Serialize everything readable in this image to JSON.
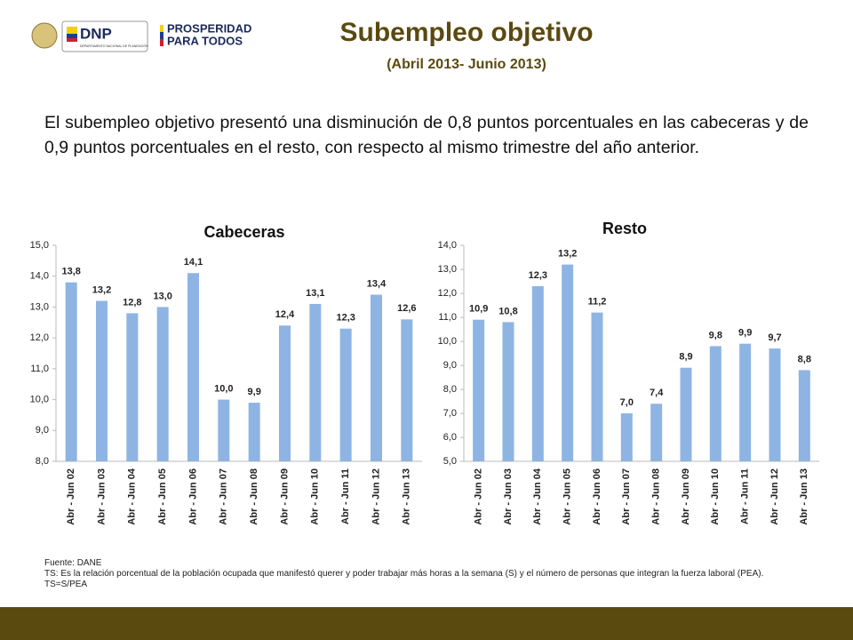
{
  "logos": {
    "dnp": "DNP",
    "dnp_sub": "DEPARTAMENTO NACIONAL DE PLANEACIÓN",
    "prosperidad": "PROSPERIDAD",
    "para_todos": "PARA TODOS"
  },
  "header": {
    "title": "Subempleo objetivo",
    "subtitle": "(Abril 2013- Junio 2013)"
  },
  "body": "El subempleo objetivo presentó una disminución de 0,8 puntos porcentuales en las cabeceras y de 0,9 puntos porcentuales en el resto, con respecto al mismo trimestre del año anterior.",
  "chart_data": [
    {
      "type": "bar",
      "title": "Cabeceras",
      "color": "#8eb4e3",
      "grid": false,
      "categories": [
        "Abr - Jun 02",
        "Abr - Jun 03",
        "Abr - Jun 04",
        "Abr - Jun 05",
        "Abr - Jun 06",
        "Abr - Jun 07",
        "Abr - Jun 08",
        "Abr - Jun 09",
        "Abr - Jun 10",
        "Abr - Jun 11",
        "Abr - Jun 12",
        "Abr - Jun 13"
      ],
      "values": [
        13.8,
        13.2,
        12.8,
        13.0,
        14.1,
        10.0,
        9.9,
        12.4,
        13.1,
        12.3,
        13.4,
        12.6
      ],
      "value_labels": [
        "13,8",
        "13,2",
        "12,8",
        "13,0",
        "14,1",
        "10,0",
        "9,9",
        "12,4",
        "13,1",
        "12,3",
        "13,4",
        "12,6"
      ],
      "ylim": [
        8,
        15
      ],
      "yticks": [
        {
          "value": 8,
          "label": "8,0"
        },
        {
          "value": 9,
          "label": "9,0"
        },
        {
          "value": 10,
          "label": "10,0"
        },
        {
          "value": 11,
          "label": "11,0"
        },
        {
          "value": 12,
          "label": "12,0"
        },
        {
          "value": 13,
          "label": "13,0"
        },
        {
          "value": 14,
          "label": "14,0"
        },
        {
          "value": 15,
          "label": "15,0"
        }
      ]
    },
    {
      "type": "bar",
      "title": "Resto",
      "color": "#8eb4e3",
      "grid": false,
      "categories": [
        "Abr - Jun 02",
        "Abr - Jun 03",
        "Abr - Jun 04",
        "Abr - Jun 05",
        "Abr - Jun 06",
        "Abr - Jun 07",
        "Abr - Jun 08",
        "Abr - Jun 09",
        "Abr - Jun 10",
        "Abr - Jun 11",
        "Abr - Jun 12",
        "Abr - Jun 13"
      ],
      "values": [
        10.9,
        10.8,
        12.3,
        13.2,
        11.2,
        7.0,
        7.4,
        8.9,
        9.8,
        9.9,
        9.7,
        8.8
      ],
      "value_labels": [
        "10,9",
        "10,8",
        "12,3",
        "13,2",
        "11,2",
        "7,0",
        "7,4",
        "8,9",
        "9,8",
        "9,9",
        "9,7",
        "8,8"
      ],
      "ylim": [
        5,
        14
      ],
      "yticks": [
        {
          "value": 5,
          "label": "5,0"
        },
        {
          "value": 6,
          "label": "6,0"
        },
        {
          "value": 7,
          "label": "7,0"
        },
        {
          "value": 8,
          "label": "8,0"
        },
        {
          "value": 9,
          "label": "9,0"
        },
        {
          "value": 10,
          "label": "10,0"
        },
        {
          "value": 11,
          "label": "11,0"
        },
        {
          "value": 12,
          "label": "12,0"
        },
        {
          "value": 13,
          "label": "13,0"
        },
        {
          "value": 14,
          "label": "14,0"
        }
      ]
    }
  ],
  "footer": {
    "source": "Fuente: DANE",
    "note": "TS:  Es la relación porcentual de la población ocupada que manifestó querer y poder trabajar más horas a la semana (S) y el número de personas que integran la fuerza laboral (PEA). TS=S/PEA"
  }
}
